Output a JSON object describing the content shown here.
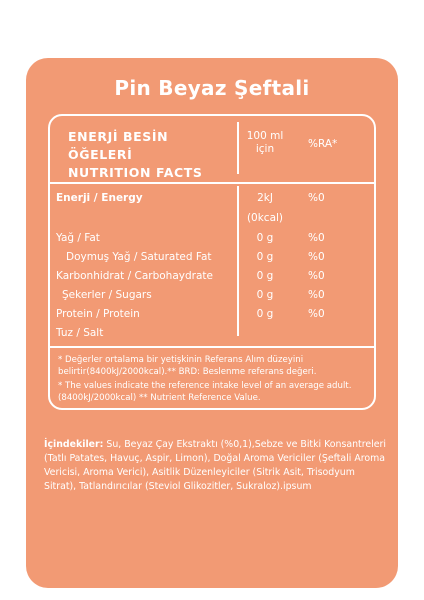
{
  "title": "Pin Beyaz Şeftali",
  "header": {
    "line1": "ENERJİ BESİN",
    "line2": "ÖĞELERİ",
    "line3": "NUTRITION FACTS",
    "per_line1": "100 ml",
    "per_line2": "için",
    "ra": "%RA*"
  },
  "rows": [
    {
      "label": "Enerji / Energy",
      "value": "2kJ",
      "ra": "%0"
    },
    {
      "label": "",
      "value": "(0kcal)",
      "ra": ""
    },
    {
      "label": "Yağ / Fat",
      "value": "0 g",
      "ra": "%0"
    },
    {
      "label": "Doymuş Yağ / Saturated Fat",
      "value": "0 g",
      "ra": "%0"
    },
    {
      "label": "Karbonhidrat / Carbohaydrate",
      "value": "0 g",
      "ra": "%0"
    },
    {
      "label": "Şekerler / Sugars",
      "value": "0 g",
      "ra": "%0"
    },
    {
      "label": "Protein / Protein",
      "value": "0 g",
      "ra": "%0"
    },
    {
      "label": "Tuz / Salt",
      "value": "",
      "ra": ""
    }
  ],
  "footnotes": [
    "* Değerler ortalama bir yetişkinin Referans Alım düzeyini belirtir(8400kJ/2000kcal).** BRD: Beslenme referans değeri.",
    "* The values indicate the reference intake level of an average adult. (8400kJ/2000kcal) ** Nutrient Reference Value."
  ],
  "ingredients": {
    "label": "İçindekiler:",
    "text": " Su, Beyaz Çay Ekstraktı (%0,1),Sebze ve Bitki Konsantreleri (Tatlı Patates, Havuç, Aspir, Limon), Doğal Aroma Vericiler (Şeftali Aroma Vericisi, Aroma Verici), Asitlik Düzenleyiciler (Sitrik Asit, Trisodyum Sitrat), Tatlandırıcılar (Steviol Glikozitler, Sukraloz).ipsum"
  },
  "colors": {
    "card": "#f29a74",
    "text": "#ffffff"
  }
}
